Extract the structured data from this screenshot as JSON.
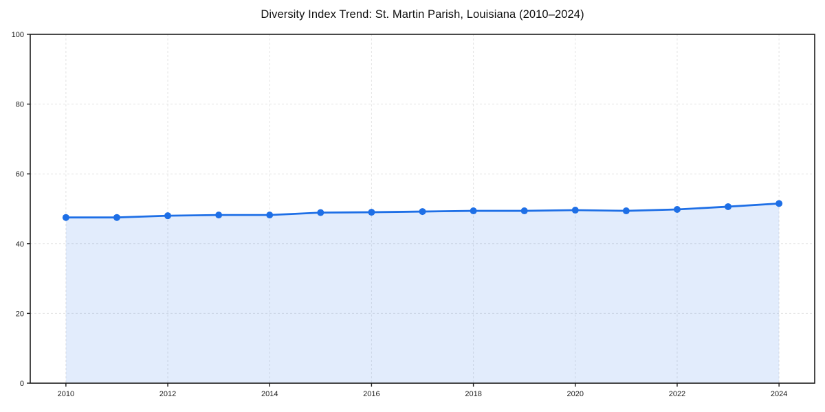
{
  "chart_data": {
    "type": "line",
    "title": "Diversity Index Trend: St. Martin Parish, Louisiana (2010–2024)",
    "xlabel": "",
    "ylabel": "",
    "x": [
      2010,
      2011,
      2012,
      2013,
      2014,
      2015,
      2016,
      2017,
      2018,
      2019,
      2020,
      2021,
      2022,
      2023,
      2024
    ],
    "series": [
      {
        "name": "Diversity Index",
        "values": [
          47.5,
          47.5,
          48.0,
          48.2,
          48.2,
          48.9,
          49.0,
          49.2,
          49.4,
          49.4,
          49.6,
          49.4,
          49.8,
          50.6,
          51.5
        ]
      }
    ],
    "x_ticks": [
      "2010",
      "2012",
      "2014",
      "2016",
      "2018",
      "2020",
      "2022",
      "2024"
    ],
    "y_ticks": [
      "0",
      "20",
      "40",
      "60",
      "80",
      "100"
    ],
    "xlim": [
      2009.3,
      2024.7
    ],
    "ylim": [
      0,
      100
    ],
    "grid": true,
    "legend": false,
    "area_fill": true,
    "colors": {
      "line": "#1e6fe6",
      "marker": "#1e6fe6",
      "area": "rgba(30, 111, 230, 0.13)",
      "grid": "#e3e3e3",
      "axis": "#1c1c1c",
      "tick_label": "#1a1a1a",
      "title": "#111111",
      "background": "#ffffff"
    }
  }
}
